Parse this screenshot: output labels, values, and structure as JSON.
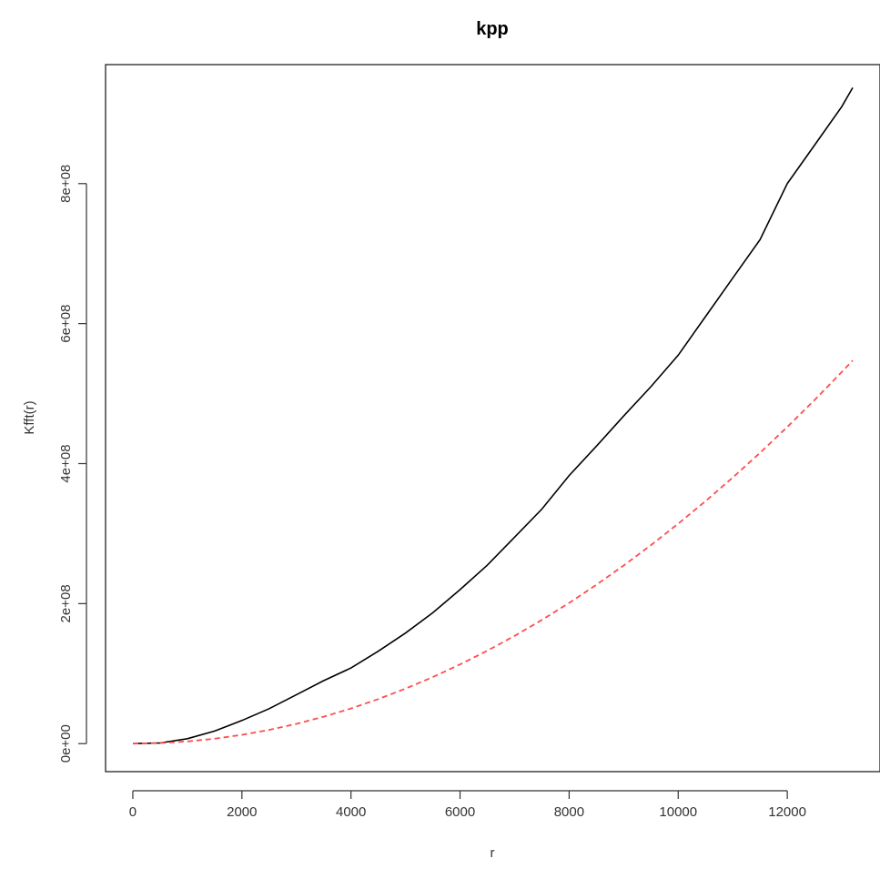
{
  "chart_data": {
    "type": "line",
    "title": "kpp",
    "xlabel": "r",
    "ylabel": "Kfft(r)",
    "xlim": [
      -500,
      13700
    ],
    "ylim": [
      -40000000,
      970000000
    ],
    "x_ticks": [
      0,
      2000,
      4000,
      6000,
      8000,
      10000,
      12000
    ],
    "x_tick_labels": [
      "0",
      "2000",
      "4000",
      "6000",
      "8000",
      "10000",
      "12000"
    ],
    "y_ticks": [
      0,
      200000000,
      400000000,
      600000000,
      800000000
    ],
    "y_tick_labels": [
      "0e+00",
      "2e+08",
      "4e+08",
      "6e+08",
      "8e+08"
    ],
    "grid": false,
    "series": [
      {
        "color": "#000000",
        "dash": "solid",
        "x": [
          0,
          500,
          1000,
          1500,
          2000,
          2500,
          3000,
          3500,
          4000,
          4500,
          5000,
          5500,
          6000,
          6500,
          7000,
          7500,
          8000,
          8500,
          9000,
          9500,
          10000,
          10500,
          11000,
          11500,
          12000,
          12500,
          13000,
          13200
        ],
        "y": [
          0,
          1000000,
          7000000,
          18000000,
          33000000,
          50000000,
          70000000,
          90000000,
          108000000,
          132000000,
          158000000,
          187000000,
          220000000,
          255000000,
          295000000,
          335000000,
          383000000,
          425000000,
          468000000,
          510000000,
          555000000,
          610000000,
          665000000,
          720000000,
          800000000,
          855000000,
          910000000,
          937000000
        ]
      },
      {
        "color": "#ff4d4d",
        "dash": "dashed",
        "x": [
          0,
          500,
          1000,
          1500,
          2000,
          2500,
          3000,
          3500,
          4000,
          4500,
          5000,
          5500,
          6000,
          6500,
          7000,
          7500,
          8000,
          8500,
          9000,
          9500,
          10000,
          10500,
          11000,
          11500,
          12000,
          12500,
          13000,
          13200
        ],
        "y": [
          0,
          790000,
          3140000,
          7070000,
          12570000,
          19630000,
          28270000,
          38480000,
          50270000,
          63620000,
          78540000,
          95030000,
          113100000,
          132730000,
          153940000,
          176710000,
          201060000,
          226980000,
          254470000,
          283530000,
          314160000,
          346360000,
          380130000,
          415480000,
          452390000,
          490870000,
          530930000,
          547370000
        ]
      }
    ]
  }
}
